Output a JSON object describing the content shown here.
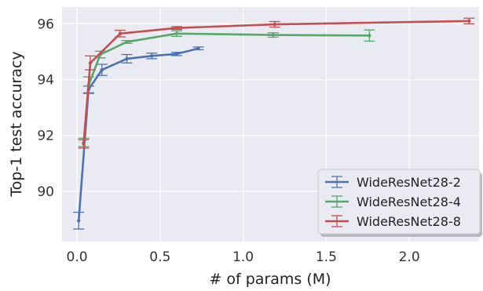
{
  "chart_data": {
    "type": "line",
    "title": "",
    "xlabel": "# of params (M)",
    "ylabel": "Top-1 test accuracy",
    "xlim": [
      -0.09,
      2.42
    ],
    "ylim": [
      88.2,
      96.6
    ],
    "xticks": [
      0.0,
      0.5,
      1.0,
      1.5,
      2.0
    ],
    "xtick_labels": [
      "0.0",
      "0.5",
      "1.0",
      "1.5",
      "2.0"
    ],
    "yticks": [
      90,
      92,
      94,
      96
    ],
    "ytick_labels": [
      "90",
      "92",
      "94",
      "96"
    ],
    "grid": true,
    "background": "#eaeaf2",
    "legend_position": "lower-right",
    "series": [
      {
        "name": "WideResNet28-2",
        "color": "#4c72b0",
        "points": [
          {
            "x": 0.01,
            "y": 88.95,
            "err": 0.3
          },
          {
            "x": 0.07,
            "y": 93.65,
            "err": 0.12
          },
          {
            "x": 0.15,
            "y": 94.35,
            "err": 0.2
          },
          {
            "x": 0.3,
            "y": 94.75,
            "err": 0.15
          },
          {
            "x": 0.45,
            "y": 94.85,
            "err": 0.1
          },
          {
            "x": 0.6,
            "y": 94.92,
            "err": 0.06
          },
          {
            "x": 0.73,
            "y": 95.12,
            "err": 0.05
          }
        ]
      },
      {
        "name": "WideResNet28-4",
        "color": "#55a868",
        "points": [
          {
            "x": 0.04,
            "y": 91.75,
            "err": 0.15
          },
          {
            "x": 0.07,
            "y": 93.8,
            "err": 0.3
          },
          {
            "x": 0.14,
            "y": 94.9,
            "err": 0.12
          },
          {
            "x": 0.3,
            "y": 95.35,
            "err": 0.05
          },
          {
            "x": 0.6,
            "y": 95.65,
            "err": 0.1
          },
          {
            "x": 1.18,
            "y": 95.6,
            "err": 0.08
          },
          {
            "x": 1.76,
            "y": 95.58,
            "err": 0.2
          }
        ]
      },
      {
        "name": "WideResNet28-8",
        "color": "#c44e52",
        "points": [
          {
            "x": 0.04,
            "y": 91.7,
            "err": 0.15
          },
          {
            "x": 0.08,
            "y": 94.6,
            "err": 0.25
          },
          {
            "x": 0.26,
            "y": 95.65,
            "err": 0.12
          },
          {
            "x": 0.6,
            "y": 95.85,
            "err": 0.05
          },
          {
            "x": 1.19,
            "y": 95.98,
            "err": 0.1
          },
          {
            "x": 2.36,
            "y": 96.1,
            "err": 0.1
          }
        ]
      }
    ]
  }
}
